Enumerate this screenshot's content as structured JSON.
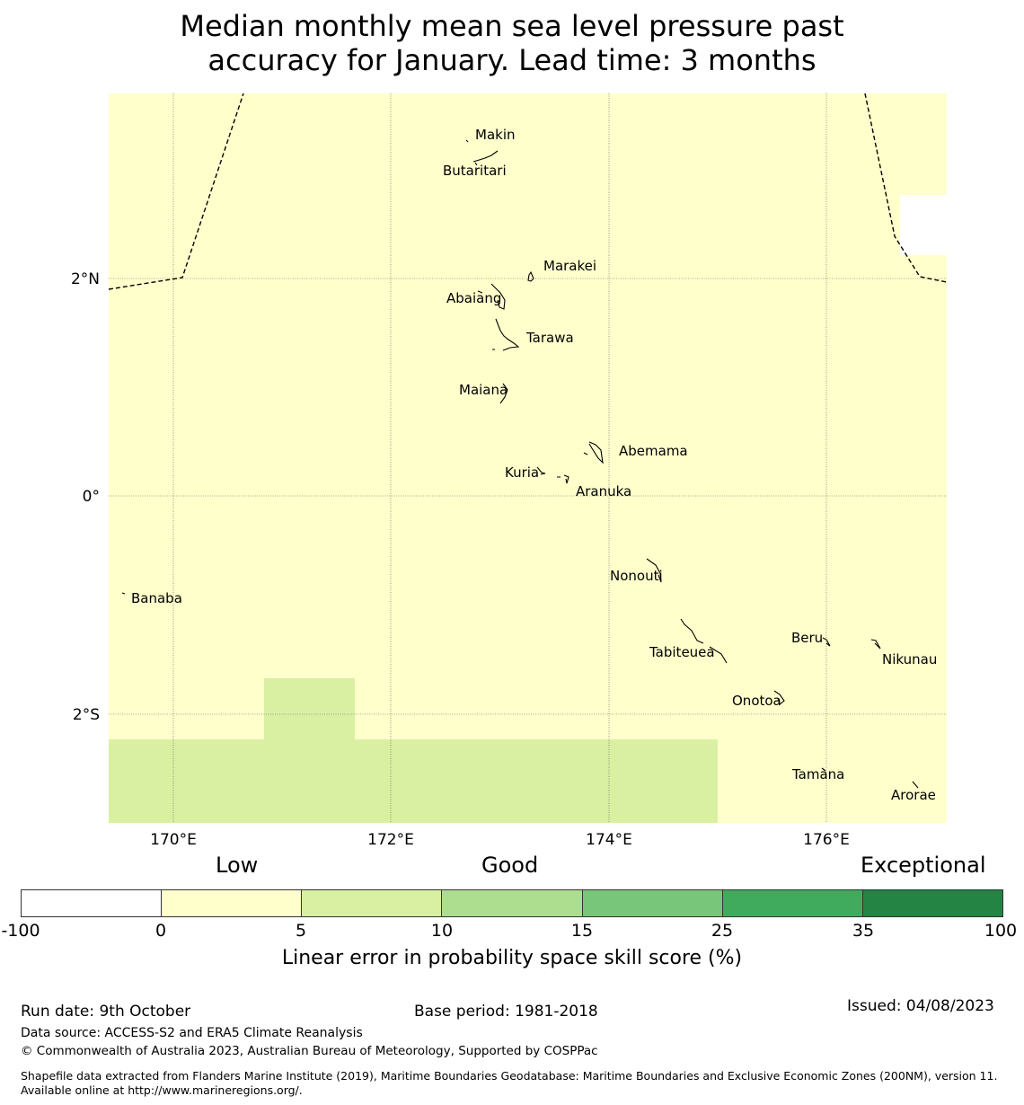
{
  "title": {
    "line1": "Median monthly mean sea level pressure past",
    "line2": "accuracy for January. Lead time: 3 months"
  },
  "map": {
    "lat_labels": [
      "2°N",
      "0°",
      "2°S"
    ],
    "lon_labels": [
      "170°E",
      "172°E",
      "174°E",
      "176°E"
    ],
    "islands": [
      "Makin",
      "Butaritari",
      "Marakei",
      "Abaiang",
      "Tarawa",
      "Maiana",
      "Abemama",
      "Kuria",
      "Aranuka",
      "Nonouti",
      "Banaba",
      "Beru",
      "Nikunau",
      "Tabiteuea",
      "Onotoa",
      "Tamana",
      "Arorae"
    ],
    "colors": {
      "low": "#ffffcc",
      "good5": "#d9f0a3",
      "boundary": "#000000"
    }
  },
  "colorbar": {
    "categories": [
      "Low",
      "Good",
      "Exceptional"
    ],
    "ticks": [
      "-100",
      "0",
      "5",
      "10",
      "15",
      "25",
      "35",
      "100"
    ],
    "colors": [
      "#ffffff",
      "#ffffcc",
      "#d9f0a3",
      "#addd8e",
      "#78c679",
      "#41ab5d",
      "#238443"
    ],
    "label": "Linear error in probability space skill score (%)"
  },
  "footer": {
    "run_date": "Run date: 9th October",
    "base_period": "Base period: 1981-2018",
    "issued": "Issued: 04/08/2023",
    "data_source": "Data source: ACCESS-S2 and ERA5 Climate Reanalysis",
    "copyright": "© Commonwealth of Australia 2023, Australian Bureau of Meteorology, Supported by COSPPac",
    "shapefile": "Shapefile data extracted from Flanders Marine Institute (2019), Maritime Boundaries Geodatabase: Maritime Boundaries and Exclusive Economic Zones (200NM), version 11. Available online at http://www.marineregions.org/."
  }
}
